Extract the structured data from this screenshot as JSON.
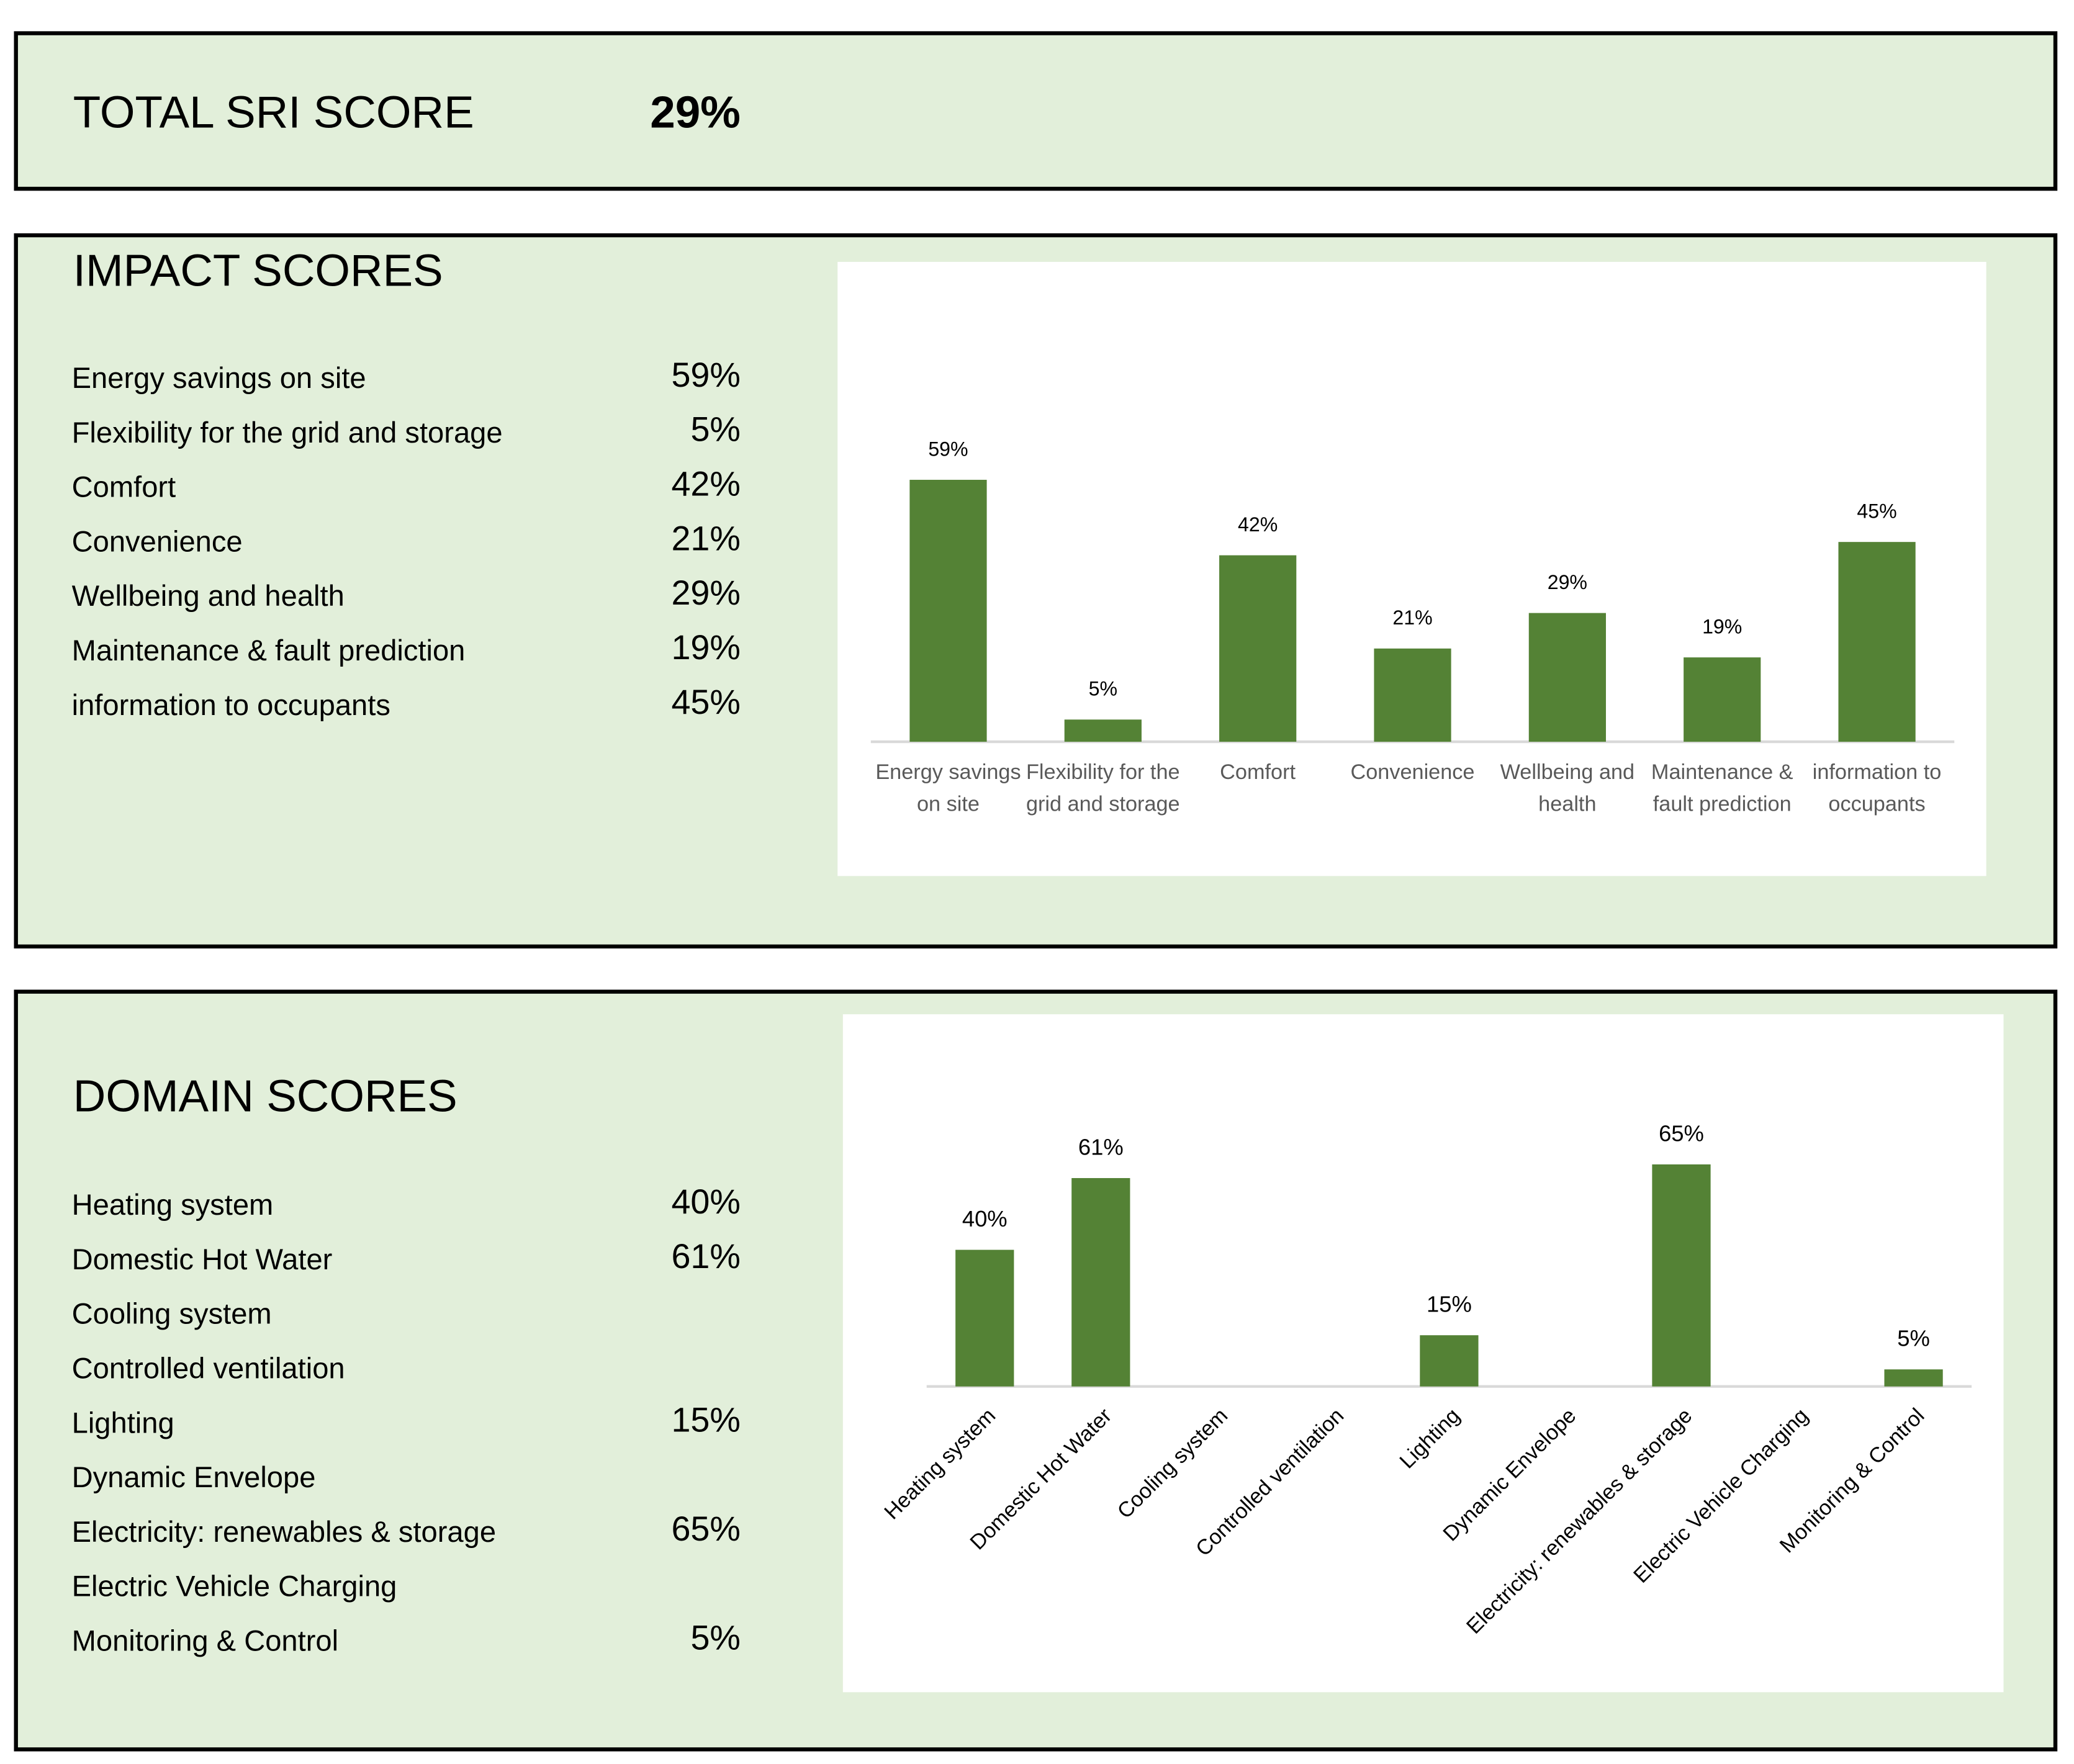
{
  "total_score": {
    "label": "TOTAL SRI SCORE",
    "value": "29%"
  },
  "impact_table": {
    "title": "IMPACT SCORES",
    "rows": [
      {
        "label": "Energy savings on site",
        "value": "59%"
      },
      {
        "label": "Flexibility for the grid and storage",
        "value": "5%"
      },
      {
        "label": "Comfort",
        "value": "42%"
      },
      {
        "label": "Convenience",
        "value": "21%"
      },
      {
        "label": "Wellbeing and health",
        "value": "29%"
      },
      {
        "label": "Maintenance & fault prediction",
        "value": "19%"
      },
      {
        "label": "information to occupants",
        "value": "45%"
      }
    ]
  },
  "domain_table": {
    "title": "DOMAIN SCORES",
    "rows": [
      {
        "label": "Heating system",
        "value": "40%"
      },
      {
        "label": "Domestic Hot Water",
        "value": "61%"
      },
      {
        "label": "Cooling system"
      },
      {
        "label": "Controlled ventilation"
      },
      {
        "label": "Lighting",
        "value": "15%"
      },
      {
        "label": "Dynamic Envelope"
      },
      {
        "label": "Electricity: renewables & storage",
        "value": "65%"
      },
      {
        "label": "Electric Vehicle Charging"
      },
      {
        "label": "Monitoring & Control",
        "value": "5%"
      }
    ]
  },
  "chart_data": [
    {
      "type": "bar",
      "categories": [
        "Energy savings on site",
        "Flexibility for the grid and storage",
        "Comfort",
        "Convenience",
        "Wellbeing and health",
        "Maintenance & fault prediction",
        "information to occupants"
      ],
      "values": [
        59,
        5,
        42,
        21,
        29,
        19,
        45
      ],
      "value_labels": [
        "59%",
        "5%",
        "42%",
        "21%",
        "29%",
        "19%",
        "45%"
      ],
      "color": "#548235"
    },
    {
      "type": "bar",
      "categories": [
        "Heating system",
        "Domestic Hot Water",
        "Cooling system",
        "Controlled ventilation",
        "Lighting",
        "Dynamic Envelope",
        "Electricity: renewables & storage",
        "Electric Vehicle Charging",
        "Monitoring & Control"
      ],
      "values": [
        40,
        61,
        null,
        null,
        15,
        null,
        65,
        null,
        5
      ],
      "value_labels": [
        "40%",
        "61%",
        null,
        null,
        "15%",
        null,
        "65%",
        null,
        "5%"
      ],
      "color": "#548235"
    }
  ]
}
